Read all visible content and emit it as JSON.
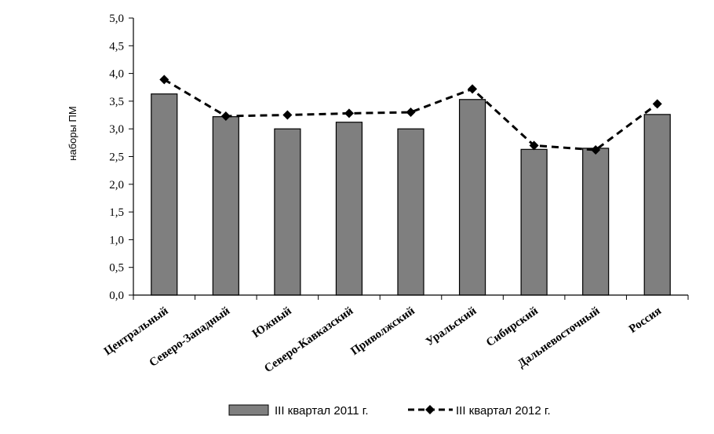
{
  "chart_data": {
    "type": "bar",
    "title": "",
    "xlabel": "",
    "ylabel": "наборы ПМ",
    "ylim": [
      0,
      5
    ],
    "ytick_step": 0.5,
    "ytick_labels": [
      "0,0",
      "0,5",
      "1,0",
      "1,5",
      "2,0",
      "2,5",
      "3,0",
      "3,5",
      "4,0",
      "4,5",
      "5,0"
    ],
    "grid": false,
    "legend_position": "bottom",
    "categories": [
      "Центральный",
      "Северо-Западный",
      "Южный",
      "Северо-Кавказский",
      "Приволжский",
      "Уральский",
      "Сибирский",
      "Дальневосточный",
      "Россия"
    ],
    "series": [
      {
        "name": "III квартал 2011 г.",
        "type": "bar",
        "color": "#7f7f7f",
        "values": [
          3.63,
          3.22,
          3.0,
          3.12,
          3.0,
          3.53,
          2.63,
          2.65,
          3.26
        ]
      },
      {
        "name": "III квартал 2012 г.",
        "type": "line",
        "color": "#000000",
        "line_style": "dashed",
        "marker": "diamond",
        "values": [
          3.89,
          3.23,
          3.25,
          3.28,
          3.3,
          3.72,
          2.7,
          2.62,
          3.45
        ]
      }
    ]
  }
}
